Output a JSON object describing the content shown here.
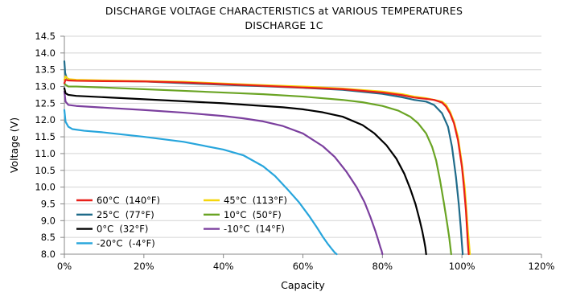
{
  "chart_data": {
    "type": "line",
    "title": "DISCHARGE VOLTAGE CHARACTERISTICS at VARIOUS TEMPERATURES",
    "subtitle": "DISCHARGE 1C",
    "xlabel": "Capacity",
    "ylabel": "Voltage (V)",
    "xlim": [
      0,
      120
    ],
    "ylim": [
      8.0,
      14.5
    ],
    "xticks": [
      "0%",
      "20%",
      "40%",
      "60%",
      "80%",
      "100%",
      "120%"
    ],
    "xtick_values": [
      0,
      20,
      40,
      60,
      80,
      100,
      120
    ],
    "yticks": [
      "8.0",
      "8.5",
      "9.0",
      "9.5",
      "10.0",
      "10.5",
      "11.0",
      "11.5",
      "12.0",
      "12.5",
      "13.0",
      "13.5",
      "14.0",
      "14.5"
    ],
    "ytick_values": [
      8.0,
      8.5,
      9.0,
      9.5,
      10.0,
      10.5,
      11.0,
      11.5,
      12.0,
      12.5,
      13.0,
      13.5,
      14.0,
      14.5
    ],
    "grid": "horizontal",
    "legend_position": "bottom-left",
    "series": [
      {
        "name": "60°C  (140°F)",
        "color": "#e8201a",
        "x": [
          0,
          0.3,
          1,
          3,
          10,
          20,
          30,
          40,
          50,
          60,
          70,
          80,
          85,
          88,
          91,
          93,
          95,
          96,
          97,
          98,
          99,
          100,
          100.5,
          101,
          101.3,
          101.5,
          101.7
        ],
        "y": [
          13.1,
          13.2,
          13.18,
          13.17,
          13.16,
          13.15,
          13.12,
          13.07,
          13.02,
          12.97,
          12.92,
          12.82,
          12.74,
          12.67,
          12.63,
          12.6,
          12.52,
          12.4,
          12.2,
          11.9,
          11.4,
          10.6,
          10.0,
          9.3,
          8.7,
          8.3,
          8.0
        ]
      },
      {
        "name": "45°C  (113°F)",
        "color": "#f5d60b",
        "x": [
          0,
          0.3,
          1,
          3,
          10,
          20,
          30,
          40,
          50,
          60,
          70,
          80,
          85,
          88,
          91,
          93,
          95,
          96,
          97,
          98,
          99,
          100,
          100.7,
          101.2,
          101.5,
          101.8,
          102.0
        ],
        "y": [
          13.2,
          13.3,
          13.22,
          13.2,
          13.18,
          13.16,
          13.14,
          13.09,
          13.04,
          13.0,
          12.94,
          12.85,
          12.77,
          12.7,
          12.65,
          12.6,
          12.55,
          12.45,
          12.25,
          11.95,
          11.5,
          10.7,
          10.0,
          9.2,
          8.7,
          8.3,
          8.0
        ]
      },
      {
        "name": "25°C  (77°F)",
        "color": "#1f6b8a",
        "x": [
          0,
          0.2,
          0.6,
          1.5,
          4,
          10,
          20,
          30,
          40,
          50,
          60,
          70,
          80,
          85,
          88,
          91,
          93,
          95,
          96.5,
          97.5,
          98.5,
          99.2,
          99.7,
          100.0,
          100.2
        ],
        "y": [
          13.75,
          13.4,
          13.25,
          13.2,
          13.18,
          13.17,
          13.15,
          13.1,
          13.05,
          13.01,
          12.96,
          12.9,
          12.78,
          12.68,
          12.6,
          12.55,
          12.45,
          12.2,
          11.8,
          11.2,
          10.3,
          9.5,
          8.8,
          8.3,
          8.0
        ]
      },
      {
        "name": "10°C  (50°F)",
        "color": "#6aa424",
        "x": [
          0,
          0.3,
          1,
          3,
          10,
          20,
          30,
          40,
          50,
          60,
          70,
          75,
          80,
          84,
          87,
          89,
          91,
          92.5,
          93.5,
          94.5,
          95.5,
          96.3,
          96.8,
          97.1,
          97.3
        ],
        "y": [
          13.1,
          13.05,
          13.0,
          13.0,
          12.97,
          12.92,
          12.87,
          12.82,
          12.77,
          12.7,
          12.6,
          12.53,
          12.42,
          12.28,
          12.1,
          11.9,
          11.6,
          11.2,
          10.8,
          10.2,
          9.5,
          8.9,
          8.5,
          8.2,
          8.0
        ]
      },
      {
        "name": "0°C  (32°F)",
        "color": "#000000",
        "x": [
          0,
          0.3,
          1,
          3,
          10,
          20,
          30,
          40,
          50,
          55,
          60,
          65,
          70,
          75,
          78,
          81,
          83.5,
          85.5,
          87,
          88.3,
          89.3,
          90.0,
          90.5,
          90.8,
          91.0
        ],
        "y": [
          12.95,
          12.8,
          12.75,
          12.72,
          12.68,
          12.62,
          12.56,
          12.5,
          12.42,
          12.38,
          12.32,
          12.23,
          12.1,
          11.85,
          11.6,
          11.25,
          10.85,
          10.4,
          9.95,
          9.5,
          9.05,
          8.7,
          8.4,
          8.2,
          8.0
        ]
      },
      {
        "name": "-10°C  (14°F)",
        "color": "#7b3f9e",
        "x": [
          0,
          0.3,
          1,
          3,
          10,
          20,
          30,
          40,
          45,
          50,
          55,
          60,
          65,
          68,
          71,
          73.5,
          75.5,
          77,
          78.2,
          79,
          79.5,
          79.8,
          80.0
        ],
        "y": [
          12.85,
          12.55,
          12.45,
          12.42,
          12.37,
          12.3,
          12.22,
          12.12,
          12.05,
          11.96,
          11.82,
          11.6,
          11.22,
          10.9,
          10.45,
          10.0,
          9.55,
          9.1,
          8.7,
          8.4,
          8.2,
          8.1,
          8.0
        ]
      },
      {
        "name": "-20°C  (-4°F)",
        "color": "#27a5dc",
        "x": [
          0,
          0.3,
          1,
          2,
          5,
          10,
          20,
          30,
          40,
          45,
          50,
          53,
          56,
          59,
          61.5,
          63.5,
          65,
          66.3,
          67.3,
          68,
          68.5
        ],
        "y": [
          12.3,
          11.95,
          11.8,
          11.73,
          11.68,
          11.63,
          11.5,
          11.35,
          11.12,
          10.95,
          10.62,
          10.33,
          9.95,
          9.55,
          9.15,
          8.8,
          8.52,
          8.3,
          8.15,
          8.05,
          8.0
        ]
      }
    ],
    "legend_layout": [
      [
        "60°C  (140°F)",
        "45°C  (113°F)"
      ],
      [
        "25°C  (77°F)",
        "10°C  (50°F)"
      ],
      [
        "0°C  (32°F)",
        "-10°C  (14°F)"
      ],
      [
        "-20°C  (-4°F)",
        ""
      ]
    ]
  }
}
